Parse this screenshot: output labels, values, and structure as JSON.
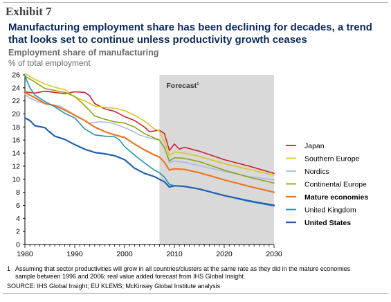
{
  "exhibit_label": "Exhibit 7",
  "headline": "Manufacturing employment share has been declining for decades, a trend that looks set to continue unless productivity growth ceases",
  "subtitle": "Employment share of manufacturing",
  "units": "% of total employment",
  "footnote": {
    "marker": "1",
    "line1": "Assuming that sector productivities will grow in all countries/clusters at the same rate as they did in the mature economies",
    "line2": "sample between 1996 and 2006; real value added forecast from IHS Global Insight."
  },
  "source": "SOURCE: IHS Global Insight; EU KLEMS; McKinsey Global Institute analysis",
  "chart_data": {
    "type": "line",
    "xlim": [
      1980,
      2030
    ],
    "ylim": [
      0,
      26
    ],
    "x_ticks": [
      1980,
      1990,
      2000,
      2010,
      2020,
      2030
    ],
    "y_ticks": [
      0,
      2,
      4,
      6,
      8,
      10,
      12,
      14,
      16,
      18,
      20,
      22,
      24,
      26
    ],
    "grid": false,
    "legend_position": "right",
    "forecast_region": {
      "label": "Forecast",
      "superscript": "1",
      "start": 2007,
      "end": 2030,
      "color": "#d9d9d9"
    },
    "series": [
      {
        "name": "Japan",
        "color": "#c8202f",
        "bold": false,
        "points": [
          [
            1980,
            23.4
          ],
          [
            1982,
            23.2
          ],
          [
            1984,
            23.5
          ],
          [
            1986,
            23.3
          ],
          [
            1988,
            23.1
          ],
          [
            1990,
            23.4
          ],
          [
            1992,
            23.3
          ],
          [
            1993,
            22.8
          ],
          [
            1994,
            21.6
          ],
          [
            1996,
            20.8
          ],
          [
            1998,
            20.4
          ],
          [
            2000,
            19.6
          ],
          [
            2002,
            19.0
          ],
          [
            2004,
            18.0
          ],
          [
            2005,
            17.3
          ],
          [
            2006,
            17.4
          ],
          [
            2007,
            17.5
          ],
          [
            2008,
            17.0
          ],
          [
            2009,
            14.4
          ],
          [
            2010,
            15.4
          ],
          [
            2011,
            14.6
          ],
          [
            2012,
            14.9
          ],
          [
            2015,
            14.3
          ],
          [
            2020,
            13.0
          ],
          [
            2025,
            12.0
          ],
          [
            2030,
            10.9
          ]
        ]
      },
      {
        "name": "Southern Europe",
        "color": "#d8c625",
        "bold": false,
        "points": [
          [
            1980,
            26.2
          ],
          [
            1982,
            25.3
          ],
          [
            1984,
            24.6
          ],
          [
            1986,
            24.1
          ],
          [
            1988,
            23.7
          ],
          [
            1990,
            22.6
          ],
          [
            1992,
            22.0
          ],
          [
            1994,
            21.2
          ],
          [
            1996,
            21.0
          ],
          [
            1998,
            20.9
          ],
          [
            2000,
            20.5
          ],
          [
            2002,
            19.8
          ],
          [
            2004,
            18.9
          ],
          [
            2006,
            17.7
          ],
          [
            2007,
            17.4
          ],
          [
            2008,
            15.8
          ],
          [
            2009,
            13.6
          ],
          [
            2010,
            14.2
          ],
          [
            2012,
            14.0
          ],
          [
            2015,
            13.5
          ],
          [
            2020,
            12.4
          ],
          [
            2025,
            11.5
          ],
          [
            2030,
            10.6
          ]
        ]
      },
      {
        "name": "Nordics",
        "color": "#a8b8e8",
        "bold": false,
        "points": [
          [
            1980,
            23.0
          ],
          [
            1981,
            22.4
          ],
          [
            1983,
            21.8
          ],
          [
            1985,
            21.4
          ],
          [
            1987,
            21.2
          ],
          [
            1989,
            20.3
          ],
          [
            1991,
            19.4
          ],
          [
            1993,
            18.6
          ],
          [
            1995,
            18.8
          ],
          [
            1997,
            18.7
          ],
          [
            1999,
            18.2
          ],
          [
            2001,
            17.6
          ],
          [
            2003,
            16.8
          ],
          [
            2005,
            16.3
          ],
          [
            2007,
            16.0
          ],
          [
            2008,
            15.0
          ],
          [
            2009,
            12.5
          ],
          [
            2010,
            12.8
          ],
          [
            2012,
            12.6
          ],
          [
            2015,
            12.1
          ],
          [
            2020,
            11.2
          ],
          [
            2025,
            10.4
          ],
          [
            2030,
            9.9
          ]
        ]
      },
      {
        "name": "Continental Europe",
        "color": "#8ca40e",
        "bold": false,
        "points": [
          [
            1980,
            25.8
          ],
          [
            1982,
            24.9
          ],
          [
            1984,
            23.9
          ],
          [
            1986,
            23.6
          ],
          [
            1988,
            23.3
          ],
          [
            1990,
            22.7
          ],
          [
            1992,
            21.3
          ],
          [
            1994,
            19.7
          ],
          [
            1996,
            19.2
          ],
          [
            1998,
            18.8
          ],
          [
            2000,
            18.6
          ],
          [
            2002,
            18.0
          ],
          [
            2004,
            17.0
          ],
          [
            2006,
            16.3
          ],
          [
            2007,
            16.0
          ],
          [
            2008,
            14.8
          ],
          [
            2009,
            12.8
          ],
          [
            2010,
            13.3
          ],
          [
            2012,
            13.2
          ],
          [
            2015,
            12.7
          ],
          [
            2020,
            11.4
          ],
          [
            2025,
            10.3
          ],
          [
            2030,
            9.4
          ]
        ]
      },
      {
        "name": "Mature economies",
        "color": "#ee7524",
        "bold": true,
        "points": [
          [
            1980,
            23.3
          ],
          [
            1982,
            22.5
          ],
          [
            1984,
            21.6
          ],
          [
            1986,
            21.3
          ],
          [
            1988,
            20.6
          ],
          [
            1990,
            19.8
          ],
          [
            1992,
            19.0
          ],
          [
            1994,
            18.0
          ],
          [
            1996,
            17.3
          ],
          [
            1998,
            16.8
          ],
          [
            2000,
            16.4
          ],
          [
            2002,
            15.4
          ],
          [
            2004,
            14.5
          ],
          [
            2006,
            13.7
          ],
          [
            2007,
            13.4
          ],
          [
            2008,
            12.6
          ],
          [
            2009,
            11.4
          ],
          [
            2010,
            11.6
          ],
          [
            2012,
            11.5
          ],
          [
            2015,
            11.0
          ],
          [
            2020,
            9.9
          ],
          [
            2025,
            8.9
          ],
          [
            2030,
            8.0
          ]
        ]
      },
      {
        "name": "United Kingdom",
        "color": "#1c94a8",
        "bold": false,
        "points": [
          [
            1980,
            25.8
          ],
          [
            1981,
            24.0
          ],
          [
            1982,
            22.9
          ],
          [
            1984,
            21.9
          ],
          [
            1986,
            21.1
          ],
          [
            1988,
            20.1
          ],
          [
            1990,
            19.4
          ],
          [
            1992,
            17.7
          ],
          [
            1994,
            16.8
          ],
          [
            1996,
            16.6
          ],
          [
            1998,
            16.5
          ],
          [
            1999,
            16.0
          ],
          [
            2000,
            15.0
          ],
          [
            2002,
            13.7
          ],
          [
            2004,
            12.5
          ],
          [
            2006,
            11.4
          ],
          [
            2007,
            11.0
          ],
          [
            2008,
            10.3
          ],
          [
            2009,
            9.2
          ],
          [
            2010,
            9.0
          ],
          [
            2012,
            8.9
          ],
          [
            2015,
            8.5
          ],
          [
            2020,
            7.5
          ],
          [
            2025,
            6.6
          ],
          [
            2030,
            5.9
          ]
        ]
      },
      {
        "name": "United States",
        "color": "#1f5fb3",
        "bold": true,
        "points": [
          [
            1980,
            19.4
          ],
          [
            1981,
            19.0
          ],
          [
            1982,
            18.2
          ],
          [
            1984,
            17.9
          ],
          [
            1985,
            17.2
          ],
          [
            1986,
            16.6
          ],
          [
            1988,
            16.1
          ],
          [
            1990,
            15.3
          ],
          [
            1992,
            14.6
          ],
          [
            1994,
            14.1
          ],
          [
            1996,
            13.9
          ],
          [
            1998,
            13.6
          ],
          [
            2000,
            13.0
          ],
          [
            2002,
            11.7
          ],
          [
            2004,
            10.9
          ],
          [
            2006,
            10.4
          ],
          [
            2007,
            10.0
          ],
          [
            2008,
            9.6
          ],
          [
            2009,
            8.8
          ],
          [
            2010,
            9.0
          ],
          [
            2012,
            8.9
          ],
          [
            2015,
            8.5
          ],
          [
            2020,
            7.5
          ],
          [
            2025,
            6.7
          ],
          [
            2030,
            6.0
          ]
        ]
      }
    ]
  }
}
